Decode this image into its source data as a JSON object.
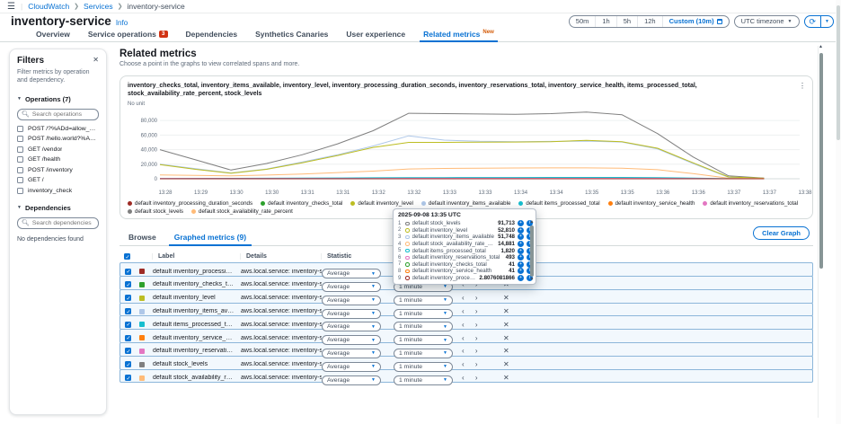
{
  "header": {
    "breadcrumb": [
      "CloudWatch",
      "Services",
      "inventory-service"
    ],
    "title": "inventory-service",
    "info_label": "Info",
    "time_presets": [
      "50m",
      "1h",
      "5h",
      "12h"
    ],
    "custom_label": "Custom (10m)",
    "timezone_label": "UTC timezone",
    "new_badge": "New",
    "tabs": [
      {
        "label": "Overview",
        "active": false
      },
      {
        "label": "Service operations",
        "badge": "3",
        "active": false
      },
      {
        "label": "Dependencies",
        "active": false
      },
      {
        "label": "Synthetics Canaries",
        "active": false
      },
      {
        "label": "User experience",
        "active": false
      },
      {
        "label": "Related metrics",
        "new": true,
        "active": true
      }
    ]
  },
  "filters": {
    "title": "Filters",
    "description": "Filter metrics by operation and dependency.",
    "operations_heading": "Operations (7)",
    "operations_search_placeholder": "Search operations",
    "operations": [
      "POST /?%ADd=allow_url_inc...",
      "POST /hello.world?%ADd=al...",
      "GET /vendor",
      "GET /health",
      "POST /inventory",
      "GET /",
      "inventory_check"
    ],
    "dependencies_heading": "Dependencies",
    "dependencies_search_placeholder": "Search dependencies",
    "dependencies_empty": "No dependencies found"
  },
  "main": {
    "heading": "Related metrics",
    "description": "Choose a point in the graphs to view correlated spans and more.",
    "browse_tab": "Browse",
    "graphed_tab": "Graphed metrics (9)",
    "clear_button": "Clear Graph"
  },
  "chart_data": {
    "type": "line",
    "title": "inventory_checks_total, inventory_items_available, inventory_level, inventory_processing_duration_seconds, inventory_reservations_total, inventory_service_health, items_processed_total, stock_availability_rate_percent, stock_levels",
    "ylabel": "No unit",
    "ylim": [
      0,
      95000
    ],
    "yticks": [
      0,
      20000,
      40000,
      60000,
      80000
    ],
    "grid": true,
    "legend_position": "bottom",
    "x": [
      "13:28",
      "13:29",
      "13:30",
      "13:30",
      "13:31",
      "13:31",
      "13:32",
      "13:32",
      "13:33",
      "13:33",
      "13:34",
      "13:34",
      "13:35",
      "13:35",
      "13:36",
      "13:36",
      "13:37",
      "13:37",
      "13:38"
    ],
    "series": [
      {
        "name": "stock_levels",
        "label": "default stock_levels",
        "color": "#7f7f7f",
        "values": [
          40000,
          26000,
          12000,
          21000,
          33000,
          48000,
          66000,
          90000,
          89500,
          89000,
          88500,
          89500,
          91713,
          88000,
          62000,
          30000,
          4000,
          1000,
          null
        ]
      },
      {
        "name": "inventory_items_available",
        "label": "default inventory_items_available",
        "color": "#aec7e8",
        "values": [
          20000,
          14000,
          8000,
          13500,
          23000,
          33000,
          45000,
          59000,
          53000,
          51500,
          51000,
          51300,
          51748,
          50500,
          41000,
          21000,
          2000,
          600,
          null
        ]
      },
      {
        "name": "inventory_level",
        "label": "default inventory_level",
        "color": "#bcbd22",
        "values": [
          19500,
          13000,
          7500,
          13000,
          22000,
          32000,
          43000,
          50000,
          50000,
          50200,
          50400,
          50800,
          52810,
          51000,
          42000,
          22000,
          2500,
          800,
          null
        ]
      },
      {
        "name": "stock_availability_rate_percent",
        "label": "default stock_availability_rate_percent",
        "color": "#ffbb78",
        "values": [
          5200,
          4600,
          4000,
          5000,
          6500,
          8500,
          10500,
          13500,
          14200,
          14600,
          14800,
          14900,
          14881,
          14500,
          12500,
          7000,
          800,
          200,
          null
        ]
      },
      {
        "name": "items_processed_total",
        "label": "default items_processed_total",
        "color": "#17becf",
        "values": [
          400,
          500,
          600,
          750,
          900,
          1100,
          1300,
          1500,
          1600,
          1680,
          1750,
          1800,
          1820,
          1800,
          1600,
          900,
          100,
          30,
          null
        ]
      },
      {
        "name": "inventory_reservations_total",
        "label": "default inventory_reservations_total",
        "color": "#e377c2",
        "values": [
          250,
          280,
          300,
          330,
          360,
          390,
          420,
          450,
          465,
          475,
          482,
          488,
          493,
          488,
          450,
          250,
          30,
          10,
          null
        ]
      },
      {
        "name": "inventory_checks_total",
        "label": "default inventory_checks_total",
        "color": "#2ca02c",
        "values": [
          30,
          32,
          34,
          36,
          37,
          38,
          39,
          40,
          40,
          41,
          41,
          41,
          41,
          41,
          40,
          25,
          5,
          2,
          null
        ]
      },
      {
        "name": "inventory_service_health",
        "label": "default inventory_service_health",
        "color": "#ff7f0e",
        "values": [
          41,
          41,
          41,
          41,
          41,
          41,
          41,
          41,
          41,
          41,
          41,
          41,
          41,
          41,
          35,
          20,
          4,
          1,
          null
        ]
      },
      {
        "name": "inventory_processing_duration_seconds",
        "label": "default inventory_processing_duration_seconds",
        "color": "#9e2b25",
        "values": [
          2.8,
          2.8,
          2.8,
          2.8,
          2.8,
          2.8,
          2.8,
          2.8,
          2.8,
          2.8,
          2.8,
          2.8,
          2.8076081866,
          2.8,
          2.5,
          1.5,
          0.3,
          0.1,
          null
        ]
      }
    ],
    "legend_order": [
      "inventory_processing_duration_seconds",
      "inventory_checks_total",
      "inventory_level",
      "inventory_items_available",
      "items_processed_total",
      "inventory_service_health",
      "inventory_reservations_total",
      "stock_levels",
      "stock_availability_rate_percent"
    ]
  },
  "tooltip": {
    "timestamp": "2025-09-08 13:35 UTC",
    "rows": [
      {
        "n": "1",
        "color": "#7f7f7f",
        "label": "default stock_levels",
        "value": "91,713"
      },
      {
        "n": "2",
        "color": "#bcbd22",
        "label": "default inventory_level",
        "value": "52,810"
      },
      {
        "n": "3",
        "color": "#aec7e8",
        "label": "default inventory_items_available",
        "value": "51,748"
      },
      {
        "n": "4",
        "color": "#ffbb78",
        "label": "default stock_availability_rate_percent",
        "value": "14,881"
      },
      {
        "n": "5",
        "color": "#17becf",
        "label": "default items_processed_total",
        "value": "1,820"
      },
      {
        "n": "6",
        "color": "#e377c2",
        "label": "default inventory_reservations_total",
        "value": "493"
      },
      {
        "n": "7",
        "color": "#2ca02c",
        "label": "default inventory_checks_total",
        "value": "41"
      },
      {
        "n": "8",
        "color": "#ff7f0e",
        "label": "default inventory_service_health",
        "value": "41"
      },
      {
        "n": "9",
        "color": "#9e2b25",
        "label": "default inventory_processing_duration_seconds",
        "value": "2.8076081866"
      }
    ]
  },
  "table": {
    "headers": [
      "Label",
      "Details",
      "Statistic",
      "Period",
      "Y axis",
      "Actions"
    ],
    "rows": [
      {
        "color": "#9e2b25",
        "label": "default inventory_processing_duration_...",
        "details": "aws.local.service: inventory-servi",
        "statistic": "Average",
        "period": "1 minute"
      },
      {
        "color": "#2ca02c",
        "label": "default inventory_checks_total",
        "details": "aws.local.service: inventory-servi",
        "statistic": "Average",
        "period": "1 minute"
      },
      {
        "color": "#bcbd22",
        "label": "default inventory_level",
        "details": "aws.local.service: inventory-servi",
        "statistic": "Average",
        "period": "1 minute"
      },
      {
        "color": "#aec7e8",
        "label": "default inventory_items_available",
        "details": "aws.local.service: inventory-servi",
        "statistic": "Average",
        "period": "1 minute"
      },
      {
        "color": "#17becf",
        "label": "default items_processed_total",
        "details": "aws.local.service: inventory-servi",
        "statistic": "Average",
        "period": "1 minute"
      },
      {
        "color": "#ff7f0e",
        "label": "default inventory_service_health",
        "details": "aws.local.service: inventory-servi",
        "statistic": "Average",
        "period": "1 minute"
      },
      {
        "color": "#e377c2",
        "label": "default inventory_reservations_total",
        "details": "aws.local.service: inventory-servi",
        "statistic": "Average",
        "period": "1 minute"
      },
      {
        "color": "#7f7f7f",
        "label": "default stock_levels",
        "details": "aws.local.service: inventory-servi",
        "statistic": "Average",
        "period": "1 minute"
      },
      {
        "color": "#ffbb78",
        "label": "default stock_availability_rate_percent",
        "details": "aws.local.service: inventory-servi",
        "statistic": "Average",
        "period": "1 minute"
      }
    ]
  }
}
